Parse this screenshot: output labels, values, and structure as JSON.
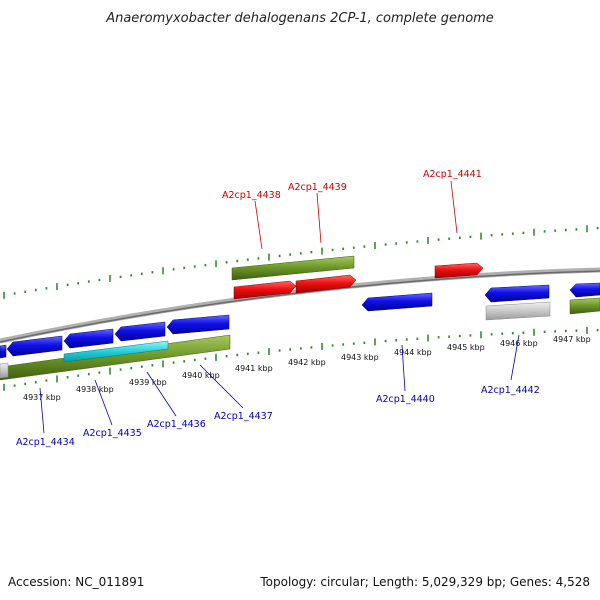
{
  "title": "Anaeromyxobacter dehalogenans 2CP-1, complete genome",
  "footer": {
    "accession": "Accession: NC_011891",
    "topology": "Topology: circular; Length: 5,029,329 bp; Genes: 4,528"
  },
  "colors": {
    "backbone": "#8a8a8a",
    "tick": "#2f8f2f",
    "forward_cds": "#e81010",
    "reverse_cds": "#1010e0",
    "gene": "#6f9a2a",
    "cyan": "#20d0d8",
    "grey": "#c8c8c8",
    "label_forward": "#cc0000",
    "label_reverse": "#0000bb"
  },
  "kbp_labels": [
    "4937 kbp",
    "4938 kbp",
    "4939 kbp",
    "4940 kbp",
    "4941 kbp",
    "4942 kbp",
    "4943 kbp",
    "4944 kbp",
    "4945 kbp",
    "4946 kbp",
    "4947 kbp"
  ],
  "forward_labels": [
    "A2cp1_4438",
    "A2cp1_4439",
    "A2cp1_4441"
  ],
  "reverse_labels": [
    "A2cp1_4434",
    "A2cp1_4435",
    "A2cp1_4436",
    "A2cp1_4437",
    "A2cp1_4440",
    "A2cp1_4442"
  ]
}
